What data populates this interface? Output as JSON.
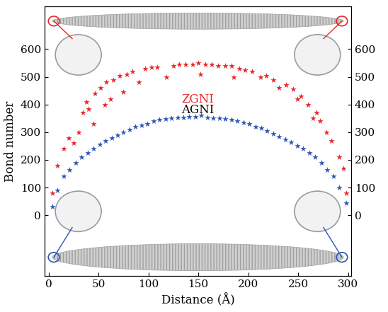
{
  "chart_data": {
    "type": "scatter",
    "xlabel": "Distance (Å)",
    "ylabel": "Bond number",
    "xlim": [
      -4,
      303
    ],
    "xticks": [
      0,
      50,
      100,
      150,
      200,
      250,
      300
    ],
    "ylim": [
      -220,
      755
    ],
    "yticks": [
      0,
      100,
      200,
      300,
      400,
      500,
      600
    ],
    "y2lim": [
      -220,
      755
    ],
    "y2ticks": [
      0,
      100,
      200,
      300,
      400,
      500,
      600
    ],
    "marker": "star",
    "annotations": [
      {
        "text": "ZGNI",
        "color": "#e8262a"
      },
      {
        "text": "AGNI",
        "color": "#000000"
      }
    ],
    "series": [
      {
        "name": "ZGNI",
        "color": "#e8262a",
        "x": [
          4,
          9,
          15,
          20,
          25,
          30,
          34,
          38,
          40,
          45,
          46,
          52,
          56,
          58,
          62,
          65,
          71,
          75,
          78,
          84,
          90,
          97,
          103,
          109,
          118,
          125,
          131,
          137,
          144,
          150,
          152,
          157,
          163,
          170,
          177,
          183,
          185,
          191,
          197,
          204,
          212,
          218,
          225,
          231,
          238,
          245,
          249,
          253,
          260,
          265,
          268,
          272,
          278,
          283,
          291,
          295,
          298
        ],
        "values": [
          80,
          180,
          240,
          280,
          260,
          300,
          370,
          410,
          385,
          330,
          440,
          460,
          400,
          480,
          420,
          490,
          505,
          445,
          510,
          520,
          480,
          530,
          535,
          535,
          500,
          540,
          545,
          545,
          545,
          550,
          510,
          545,
          545,
          540,
          540,
          540,
          500,
          530,
          525,
          520,
          500,
          505,
          490,
          460,
          470,
          455,
          420,
          430,
          400,
          350,
          370,
          340,
          300,
          270,
          210,
          170,
          80
        ]
      },
      {
        "name": "AGNI",
        "color": "#2d55b5",
        "x": [
          4,
          9,
          15,
          21,
          27,
          33,
          39,
          45,
          51,
          57,
          63,
          69,
          75,
          81,
          87,
          93,
          99,
          105,
          111,
          117,
          123,
          129,
          135,
          141,
          147,
          153,
          159,
          165,
          171,
          177,
          183,
          189,
          195,
          201,
          207,
          213,
          219,
          225,
          231,
          237,
          243,
          249,
          255,
          261,
          267,
          273,
          279,
          285,
          291,
          298
        ],
        "values": [
          30,
          90,
          140,
          165,
          190,
          210,
          225,
          240,
          255,
          270,
          280,
          290,
          300,
          310,
          320,
          325,
          330,
          340,
          345,
          348,
          350,
          352,
          352,
          355,
          355,
          360,
          352,
          350,
          350,
          348,
          345,
          340,
          335,
          330,
          320,
          315,
          305,
          295,
          285,
          275,
          265,
          250,
          240,
          225,
          210,
          190,
          165,
          140,
          100,
          45
        ]
      }
    ]
  }
}
